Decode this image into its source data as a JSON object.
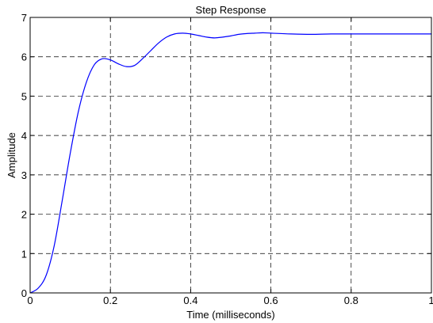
{
  "chart_data": {
    "type": "line",
    "title": "Step Response",
    "xlabel": "Time (milliseconds)",
    "ylabel": "Amplitude",
    "xlim": [
      0,
      1
    ],
    "ylim": [
      0,
      7
    ],
    "x_ticks": [
      0,
      0.2,
      0.4,
      0.6,
      0.8,
      1
    ],
    "x_tick_labels": [
      "0",
      "0.2",
      "0.4",
      "0.6",
      "0.8",
      "1"
    ],
    "y_ticks": [
      0,
      1,
      2,
      3,
      4,
      5,
      6,
      7
    ],
    "y_tick_labels": [
      "0",
      "1",
      "2",
      "3",
      "4",
      "5",
      "6",
      "7"
    ],
    "grid": true,
    "grid_style": "dashed",
    "colors": {
      "series": "#0000ff",
      "axes": "#000000",
      "grid": "#000000",
      "background": "#ffffff"
    },
    "series": [
      {
        "x": [
          0,
          0.02,
          0.04,
          0.06,
          0.08,
          0.1,
          0.12,
          0.14,
          0.16,
          0.18,
          0.2,
          0.22,
          0.24,
          0.26,
          0.28,
          0.3,
          0.32,
          0.34,
          0.36,
          0.38,
          0.4,
          0.42,
          0.44,
          0.46,
          0.48,
          0.5,
          0.52,
          0.54,
          0.56,
          0.58,
          0.6,
          0.65,
          0.7,
          0.75,
          0.8,
          0.9,
          1.0
        ],
        "y": [
          0,
          0.12,
          0.45,
          1.2,
          2.35,
          3.55,
          4.6,
          5.35,
          5.8,
          5.95,
          5.92,
          5.82,
          5.75,
          5.78,
          5.95,
          6.15,
          6.35,
          6.5,
          6.58,
          6.6,
          6.58,
          6.54,
          6.5,
          6.48,
          6.5,
          6.53,
          6.57,
          6.59,
          6.6,
          6.61,
          6.6,
          6.58,
          6.57,
          6.58,
          6.58,
          6.58,
          6.58
        ]
      }
    ]
  }
}
